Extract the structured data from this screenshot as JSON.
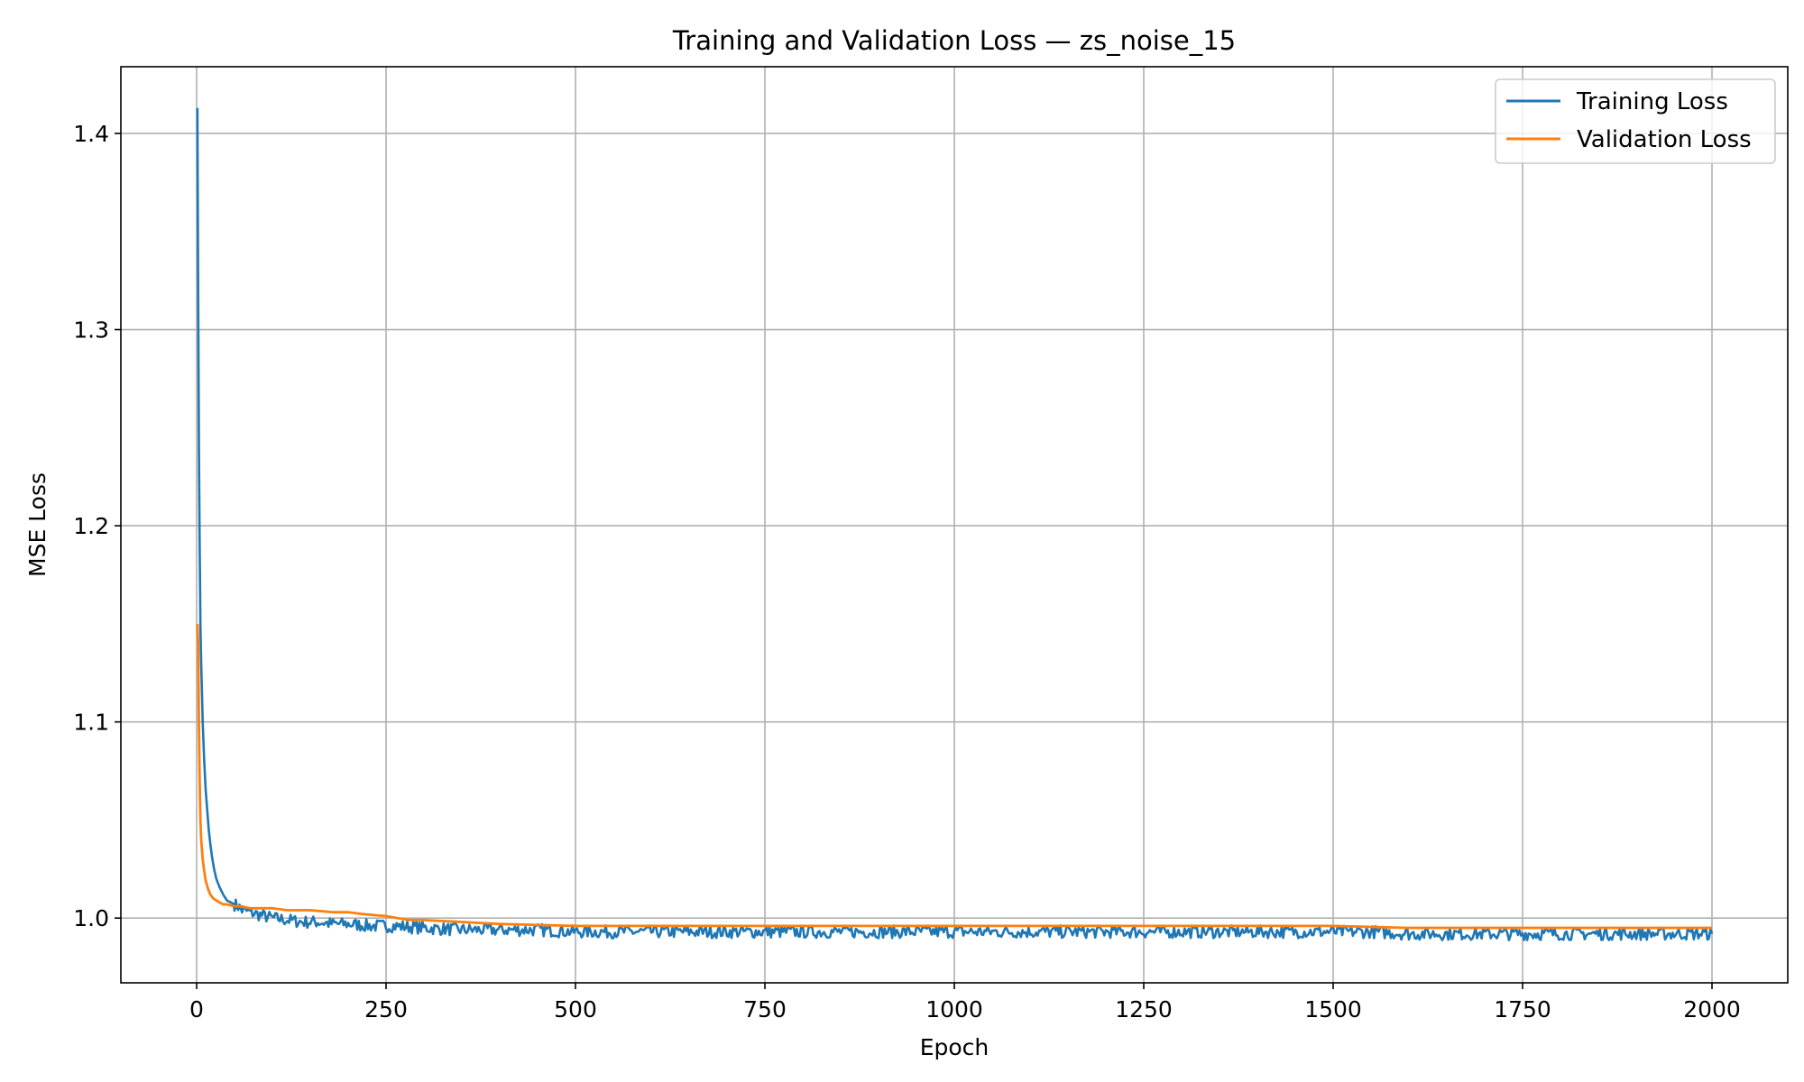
{
  "chart_data": {
    "type": "line",
    "title": "Training and Validation Loss — zs_noise_15",
    "xlabel": "Epoch",
    "ylabel": "MSE Loss",
    "xlim": [
      -100,
      2100
    ],
    "ylim": [
      0.967,
      1.434
    ],
    "xticks": [
      0,
      250,
      500,
      750,
      1000,
      1250,
      1500,
      1750,
      2000
    ],
    "xtick_labels": [
      "0",
      "250",
      "500",
      "750",
      "1000",
      "1250",
      "1500",
      "1750",
      "2000"
    ],
    "yticks": [
      1.0,
      1.1,
      1.2,
      1.3,
      1.4
    ],
    "ytick_labels": [
      "1.0",
      "1.1",
      "1.2",
      "1.3",
      "1.4"
    ],
    "grid": true,
    "legend_position": "top-right",
    "series": [
      {
        "name": "Training Loss",
        "color": "#1f77b4",
        "x": [
          1,
          2,
          3,
          4,
          5,
          6,
          8,
          10,
          12,
          14,
          16,
          18,
          20,
          23,
          26,
          30,
          35,
          40,
          45,
          50,
          55,
          60,
          70,
          80,
          90,
          100,
          120,
          140,
          160,
          180,
          200,
          230,
          260,
          300,
          350,
          400,
          450,
          500,
          550,
          600,
          650,
          700,
          750,
          800,
          850,
          900,
          950,
          1000,
          1050,
          1100,
          1150,
          1200,
          1250,
          1300,
          1350,
          1400,
          1450,
          1500,
          1550,
          1600,
          1650,
          1700,
          1750,
          1800,
          1850,
          1900,
          1950,
          2000
        ],
        "y": [
          1.413,
          1.32,
          1.24,
          1.19,
          1.15,
          1.13,
          1.1,
          1.08,
          1.065,
          1.055,
          1.045,
          1.038,
          1.032,
          1.025,
          1.02,
          1.016,
          1.012,
          1.009,
          1.008,
          1.007,
          1.006,
          1.004,
          1.003,
          1.002,
          1.001,
          1.0,
          0.999,
          0.998,
          0.998,
          0.997,
          0.997,
          0.996,
          0.996,
          0.995,
          0.994,
          0.994,
          0.994,
          0.993,
          0.993,
          0.993,
          0.993,
          0.993,
          0.993,
          0.993,
          0.993,
          0.993,
          0.993,
          0.993,
          0.993,
          0.993,
          0.993,
          0.993,
          0.993,
          0.993,
          0.993,
          0.993,
          0.993,
          0.993,
          0.993,
          0.992,
          0.992,
          0.992,
          0.992,
          0.992,
          0.992,
          0.992,
          0.992,
          0.992
        ]
      },
      {
        "name": "Validation Loss",
        "color": "#ff7f0e",
        "x": [
          1,
          2,
          3,
          4,
          5,
          6,
          8,
          10,
          12,
          15,
          18,
          22,
          26,
          30,
          35,
          40,
          50,
          60,
          70,
          80,
          100,
          120,
          150,
          180,
          200,
          220,
          250,
          280,
          300,
          350,
          400,
          500,
          600,
          700,
          800,
          900,
          1000,
          1100,
          1200,
          1300,
          1400,
          1500,
          1600,
          1700,
          1800,
          1900,
          2000
        ],
        "y": [
          1.15,
          1.14,
          1.1,
          1.07,
          1.05,
          1.04,
          1.03,
          1.024,
          1.019,
          1.015,
          1.012,
          1.01,
          1.009,
          1.008,
          1.007,
          1.007,
          1.006,
          1.006,
          1.005,
          1.005,
          1.005,
          1.004,
          1.004,
          1.003,
          1.003,
          1.002,
          1.001,
          0.999,
          0.999,
          0.998,
          0.997,
          0.996,
          0.996,
          0.996,
          0.996,
          0.996,
          0.996,
          0.996,
          0.996,
          0.996,
          0.996,
          0.996,
          0.995,
          0.995,
          0.995,
          0.995,
          0.995
        ]
      }
    ]
  }
}
